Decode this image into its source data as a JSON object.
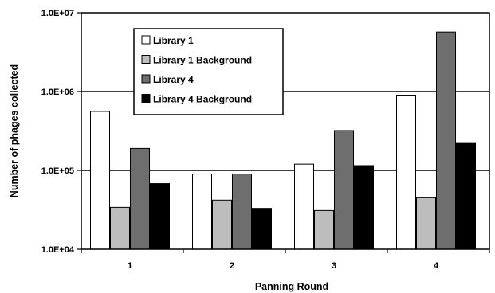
{
  "chart_data": {
    "type": "bar",
    "title": "",
    "xlabel": "Panning Round",
    "ylabel": "Number of phages collected",
    "yscale": "log",
    "ylim": [
      10000,
      10000000
    ],
    "y_ticks": [
      "1.0E+04",
      "1.0E+05",
      "1.0E+06",
      "1.0E+07"
    ],
    "y_tick_values": [
      10000,
      100000,
      1000000,
      10000000
    ],
    "grid": "horizontal major lines",
    "legend_position": "top-left (inside plot)",
    "categories": [
      "1",
      "2",
      "3",
      "4"
    ],
    "series": [
      {
        "name": "Library 1",
        "color": "#ffffff",
        "values": [
          560000,
          90000,
          120000,
          900000
        ]
      },
      {
        "name": "Library 1 Background",
        "color": "#bdbdbd",
        "values": [
          34000,
          42000,
          31000,
          45000
        ]
      },
      {
        "name": "Library 4",
        "color": "#6e6e6e",
        "values": [
          190000,
          90000,
          320000,
          5700000
        ]
      },
      {
        "name": "Library 4 Background",
        "color": "#000000",
        "values": [
          68000,
          33000,
          115000,
          225000
        ]
      }
    ]
  }
}
